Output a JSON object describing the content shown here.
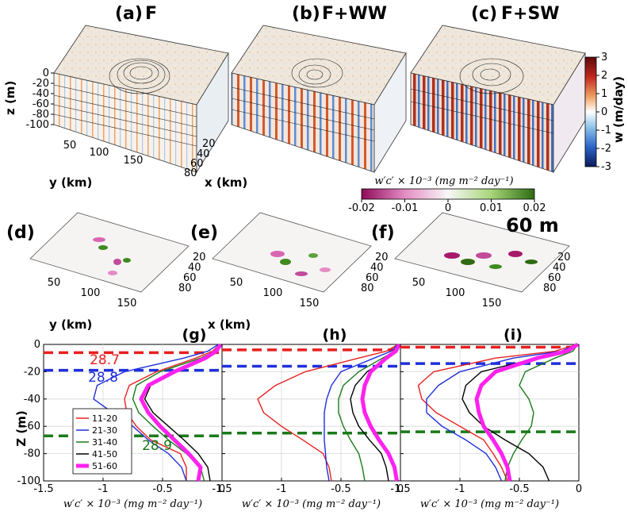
{
  "panels_3d": [
    {
      "label": "(a)",
      "title": "F"
    },
    {
      "label": "(b)",
      "title": "F+WW"
    },
    {
      "label": "(c)",
      "title": "F+SW"
    }
  ],
  "panels_flux": [
    {
      "label": "(d)"
    },
    {
      "label": "(e)"
    },
    {
      "label": "(f)"
    }
  ],
  "depth_label": "60 m",
  "axes_3d": {
    "z_label": "z (m)",
    "z_ticks": [
      "0",
      "-20",
      "-40",
      "-60",
      "-80",
      "-100"
    ],
    "y_label": "y (km)",
    "y_ticks": [
      "50",
      "100",
      "150"
    ],
    "x_label": "x (km)",
    "x_ticks": [
      "20",
      "40",
      "60",
      "80"
    ]
  },
  "colorbar_w": {
    "label": "w (m/day)",
    "ticks": [
      "3",
      "2",
      "1",
      "0",
      "-1",
      "-2",
      "-3"
    ]
  },
  "colorbar_flux": {
    "label": "w′c′ × 10⁻³ (mg m⁻² day⁻¹)",
    "ticks": [
      "-0.02",
      "-0.01",
      "0",
      "0.01",
      "0.02"
    ]
  },
  "profile_axes": {
    "ylabel": "Z (m)",
    "yticks": [
      "0",
      "-20",
      "-40",
      "-60",
      "-80",
      "-100"
    ],
    "xticks": [
      "-1.5",
      "-1",
      "-0.5",
      "0"
    ],
    "xlabel": "w′c′ × 10⁻³ (mg m⁻² day⁻¹)"
  },
  "legend": [
    {
      "label": "11-20",
      "color": "#e8201f"
    },
    {
      "label": "21-30",
      "color": "#1f2fdc"
    },
    {
      "label": "31-40",
      "color": "#1a7a1a"
    },
    {
      "label": "41-50",
      "color": "#000000"
    },
    {
      "label": "51-60",
      "color": "#ff22ee"
    }
  ],
  "isopycnal_labels": [
    "28.7",
    "28.8",
    "28.9"
  ],
  "chart_data": [
    {
      "type": "line",
      "panel": "(g)",
      "title": "(g)",
      "xlabel": "w′c′ × 10⁻³ (mg m⁻² day⁻¹)",
      "ylabel": "Z (m)",
      "xlim": [
        -1.5,
        0
      ],
      "ylim": [
        -100,
        0
      ],
      "z": [
        0,
        -5,
        -10,
        -20,
        -30,
        -40,
        -50,
        -60,
        -70,
        -80,
        -90,
        -100
      ],
      "dashed_depths": [
        {
          "z": -6,
          "color": "#e8201f"
        },
        {
          "z": -19,
          "color": "#1f2fdc"
        },
        {
          "z": -67,
          "color": "#1a7a1a"
        }
      ],
      "series": [
        {
          "name": "11-20",
          "color": "#e8201f",
          "values": [
            -0.02,
            -0.08,
            -0.22,
            -0.55,
            -0.78,
            -0.82,
            -0.8,
            -0.72,
            -0.6,
            -0.35,
            -0.3,
            -0.3
          ]
        },
        {
          "name": "21-30",
          "color": "#1f2fdc",
          "values": [
            -0.03,
            -0.12,
            -0.32,
            -0.82,
            -1.05,
            -1.08,
            -0.92,
            -0.75,
            -0.62,
            -0.45,
            -0.34,
            -0.3
          ]
        },
        {
          "name": "31-40",
          "color": "#1a7a1a",
          "values": [
            -0.02,
            -0.06,
            -0.18,
            -0.52,
            -0.72,
            -0.75,
            -0.7,
            -0.58,
            -0.45,
            -0.3,
            -0.18,
            -0.15
          ]
        },
        {
          "name": "41-50",
          "color": "#000000",
          "values": [
            -0.01,
            -0.04,
            -0.12,
            -0.38,
            -0.6,
            -0.65,
            -0.58,
            -0.45,
            -0.32,
            -0.2,
            -0.12,
            -0.1
          ]
        },
        {
          "name": "51-60",
          "color": "#ff22ee",
          "values": [
            -0.01,
            -0.05,
            -0.14,
            -0.4,
            -0.62,
            -0.68,
            -0.62,
            -0.52,
            -0.4,
            -0.28,
            -0.18,
            -0.2
          ]
        }
      ]
    },
    {
      "type": "line",
      "panel": "(h)",
      "title": "(h)",
      "xlabel": "w′c′ × 10⁻³ (mg m⁻² day⁻¹)",
      "ylabel": "Z (m)",
      "xlim": [
        -1.5,
        0
      ],
      "ylim": [
        -100,
        0
      ],
      "z": [
        0,
        -5,
        -10,
        -20,
        -30,
        -40,
        -50,
        -60,
        -70,
        -80,
        -90,
        -100
      ],
      "dashed_depths": [
        {
          "z": -4,
          "color": "#e8201f"
        },
        {
          "z": -16,
          "color": "#1f2fdc"
        },
        {
          "z": -65,
          "color": "#1a7a1a"
        }
      ],
      "series": [
        {
          "name": "11-20",
          "color": "#e8201f",
          "values": [
            -0.02,
            -0.12,
            -0.35,
            -0.8,
            -1.05,
            -1.2,
            -1.15,
            -1.0,
            -0.82,
            -0.65,
            -0.6,
            -0.58
          ]
        },
        {
          "name": "21-30",
          "color": "#1f2fdc",
          "values": [
            -0.02,
            -0.08,
            -0.22,
            -0.5,
            -0.58,
            -0.62,
            -0.64,
            -0.64,
            -0.64,
            -0.63,
            -0.62,
            -0.6
          ]
        },
        {
          "name": "31-40",
          "color": "#1a7a1a",
          "values": [
            -0.01,
            -0.05,
            -0.15,
            -0.35,
            -0.48,
            -0.52,
            -0.52,
            -0.48,
            -0.42,
            -0.35,
            -0.32,
            -0.3
          ]
        },
        {
          "name": "41-50",
          "color": "#000000",
          "values": [
            -0.01,
            -0.04,
            -0.1,
            -0.28,
            -0.38,
            -0.42,
            -0.4,
            -0.35,
            -0.26,
            -0.16,
            -0.12,
            -0.1
          ]
        },
        {
          "name": "51-60",
          "color": "#ff22ee",
          "values": [
            -0.01,
            -0.04,
            -0.12,
            -0.25,
            -0.3,
            -0.32,
            -0.3,
            -0.25,
            -0.18,
            -0.1,
            -0.05,
            -0.03
          ]
        }
      ]
    },
    {
      "type": "line",
      "panel": "(i)",
      "title": "(i)",
      "xlabel": "w′c′ × 10⁻³ (mg m⁻² day⁻¹)",
      "ylabel": "Z (m)",
      "xlim": [
        -1.5,
        0
      ],
      "ylim": [
        -100,
        0
      ],
      "z": [
        0,
        -5,
        -10,
        -20,
        -30,
        -40,
        -50,
        -60,
        -70,
        -80,
        -90,
        -100
      ],
      "dashed_depths": [
        {
          "z": -2,
          "color": "#e8201f"
        },
        {
          "z": -14,
          "color": "#1f2fdc"
        },
        {
          "z": -64,
          "color": "#1a7a1a"
        }
      ],
      "series": [
        {
          "name": "11-20",
          "color": "#e8201f",
          "values": [
            -0.02,
            -0.2,
            -0.7,
            -1.22,
            -1.35,
            -1.32,
            -1.2,
            -1.0,
            -0.8,
            -0.72,
            -0.65,
            -0.6
          ]
        },
        {
          "name": "21-30",
          "color": "#1f2fdc",
          "values": [
            -0.02,
            -0.15,
            -0.55,
            -1.0,
            -1.18,
            -1.28,
            -1.28,
            -1.15,
            -0.95,
            -0.78,
            -0.7,
            -0.65
          ]
        },
        {
          "name": "31-40",
          "color": "#1a7a1a",
          "values": [
            -0.01,
            -0.05,
            -0.2,
            -0.45,
            -0.5,
            -0.42,
            -0.38,
            -0.4,
            -0.48,
            -0.55,
            -0.6,
            -0.62
          ]
        },
        {
          "name": "41-50",
          "color": "#000000",
          "values": [
            -0.01,
            -0.08,
            -0.35,
            -0.82,
            -0.95,
            -0.98,
            -0.92,
            -0.8,
            -0.62,
            -0.42,
            -0.3,
            -0.25
          ]
        },
        {
          "name": "51-60",
          "color": "#ff22ee",
          "values": [
            -0.01,
            -0.1,
            -0.35,
            -0.7,
            -0.82,
            -0.86,
            -0.84,
            -0.8,
            -0.72,
            -0.65,
            -0.6,
            -0.58
          ]
        }
      ]
    }
  ]
}
